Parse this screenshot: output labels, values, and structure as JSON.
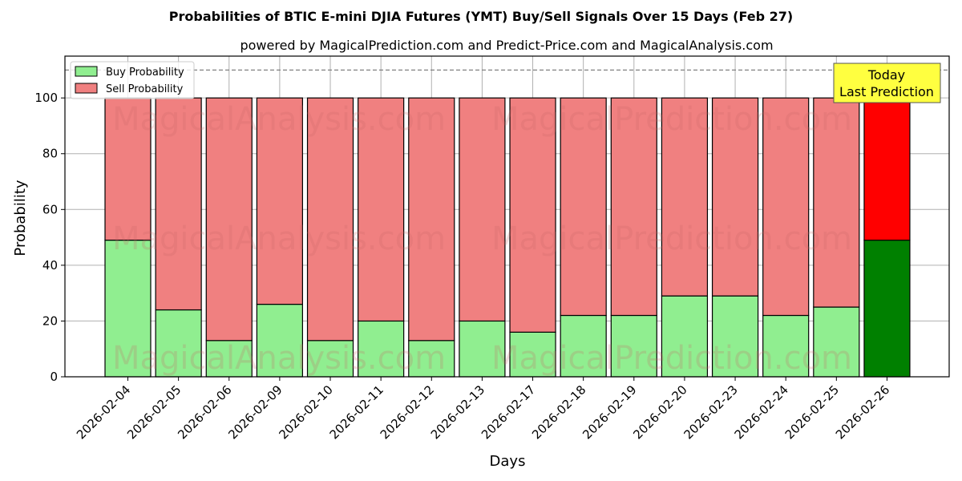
{
  "chart_data": {
    "type": "bar",
    "stacked": true,
    "title": "Probabilities of BTIC E-mini DJIA Futures (YMT) Buy/Sell Signals Over 15 Days (Feb 27)",
    "subtitle": "powered by MagicalPrediction.com and Predict-Price.com and MagicalAnalysis.com",
    "xlabel": "Days",
    "ylabel": "Probability",
    "ylim": [
      0,
      115
    ],
    "yticks": [
      0,
      20,
      40,
      60,
      80,
      100
    ],
    "reference_line": 110,
    "grid": true,
    "legend_position": "top-left",
    "categories": [
      "2026-02-04",
      "2026-02-05",
      "2026-02-06",
      "2026-02-09",
      "2026-02-10",
      "2026-02-11",
      "2026-02-12",
      "2026-02-13",
      "2026-02-17",
      "2026-02-18",
      "2026-02-19",
      "2026-02-20",
      "2026-02-23",
      "2026-02-24",
      "2026-02-25",
      "2026-02-26"
    ],
    "series": [
      {
        "name": "Buy Probability",
        "color": "#90ee90",
        "highlight_color": "#008000",
        "values": [
          49,
          24,
          13,
          26,
          13,
          20,
          13,
          20,
          16,
          22,
          22,
          29,
          29,
          22,
          25,
          49
        ]
      },
      {
        "name": "Sell Probability",
        "color": "#f08080",
        "highlight_color": "#ff0000",
        "values": [
          51,
          76,
          87,
          74,
          87,
          80,
          87,
          80,
          84,
          78,
          78,
          71,
          71,
          78,
          75,
          51
        ]
      }
    ],
    "highlight_index": 15,
    "annotation": {
      "line1": "Today",
      "line2": "Last Prediction",
      "color": "#ffff40"
    },
    "watermarks": [
      "MagicalAnalysis.com",
      "MagicalPrediction.com"
    ]
  }
}
